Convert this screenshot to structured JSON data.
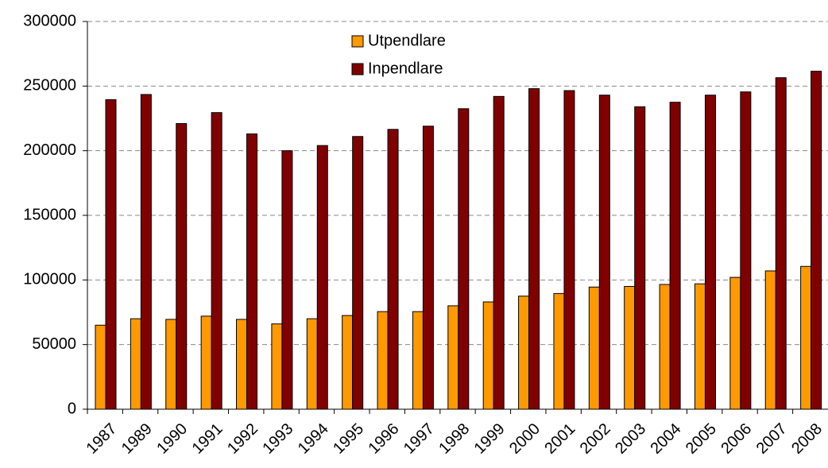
{
  "chart_data": {
    "type": "bar",
    "categories": [
      "1987",
      "1989",
      "1990",
      "1991",
      "1992",
      "1993",
      "1994",
      "1995",
      "1996",
      "1997",
      "1998",
      "1999",
      "2000",
      "2001",
      "2002",
      "2003",
      "2004",
      "2005",
      "2006",
      "2007",
      "2008"
    ],
    "series": [
      {
        "name": "Utpendlare",
        "color": "#ff9900",
        "values": [
          65000,
          70000,
          69500,
          72000,
          69500,
          66000,
          70000,
          72500,
          75500,
          75500,
          80000,
          83000,
          87500,
          89500,
          94500,
          95000,
          96500,
          97000,
          102000,
          107000,
          110500
        ]
      },
      {
        "name": "Inpendlare",
        "color": "#800000",
        "values": [
          239500,
          243500,
          221000,
          229500,
          213000,
          200000,
          204000,
          211000,
          216500,
          219000,
          232500,
          242000,
          248000,
          246500,
          243000,
          234000,
          237500,
          243000,
          245500,
          256500,
          261500
        ]
      }
    ],
    "ylim": [
      0,
      300000
    ],
    "yticks": [
      0,
      50000,
      100000,
      150000,
      200000,
      250000,
      300000
    ],
    "grid": true
  }
}
